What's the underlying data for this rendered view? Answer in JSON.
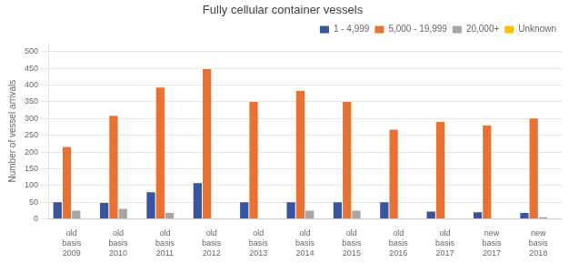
{
  "chart_data": {
    "type": "bar",
    "title": "Fully cellular container vessels",
    "ylabel": "Number of vessel arrivals",
    "categories": [
      "old\nbasis\n2009",
      "old\nbasis\n2010",
      "old\nbasis\n2011",
      "old\nbasis\n2012",
      "old\nbasis\n2013",
      "old\nbasis\n2014",
      "old\nbasis\n2015",
      "old\nbasis\n2016",
      "old\nbasis\n2017",
      "new\nbasis\n2017",
      "new\nbasis\n2018"
    ],
    "series": [
      {
        "name": "1 - 4,999",
        "color": "#3855A0",
        "values": [
          50,
          48,
          80,
          107,
          50,
          50,
          50,
          50,
          22,
          20,
          18
        ]
      },
      {
        "name": "5,000 - 19,999",
        "color": "#E97132",
        "values": [
          215,
          308,
          393,
          448,
          350,
          383,
          350,
          267,
          290,
          280,
          300
        ]
      },
      {
        "name": "20,000+",
        "color": "#A5A5A5",
        "values": [
          25,
          30,
          18,
          0,
          0,
          25,
          25,
          0,
          0,
          0,
          5
        ]
      },
      {
        "name": "Unknown",
        "color": "#FFC000",
        "values": [
          0,
          0,
          0,
          0,
          0,
          0,
          0,
          0,
          0,
          0,
          0
        ]
      }
    ],
    "ylim": [
      0,
      525
    ],
    "yticks": [
      0,
      50,
      100,
      150,
      200,
      250,
      300,
      350,
      400,
      450,
      500
    ],
    "grid": true,
    "legend": "upper right"
  }
}
